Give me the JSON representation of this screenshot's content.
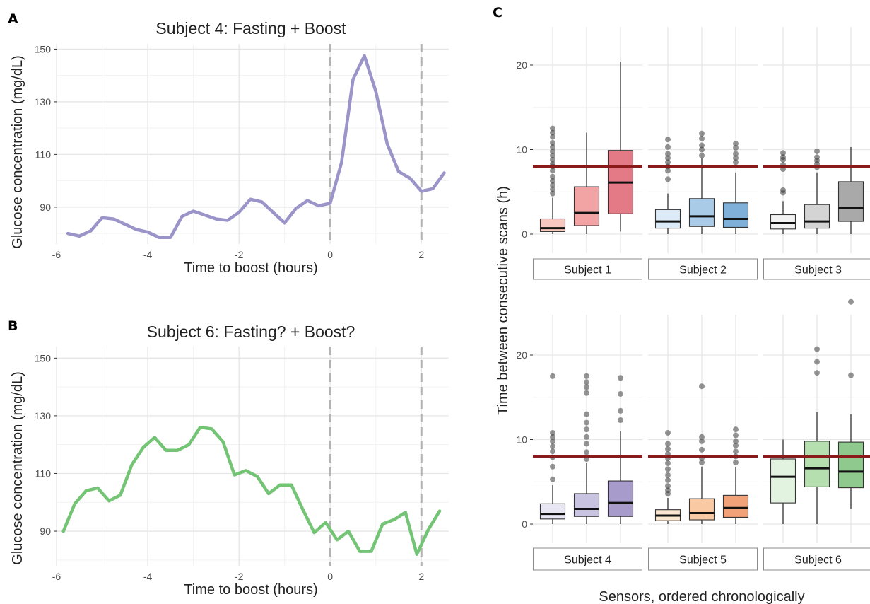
{
  "panels": {
    "a": "A",
    "b": "B",
    "c": "C"
  },
  "chart_data": [
    {
      "type": "line",
      "panel": "A",
      "title": "Subject 4: Fasting + Boost",
      "xlabel": "Time to boost (hours)",
      "ylabel": "Glucose concentration (mg/dL)",
      "xlim": [
        -6,
        2.6
      ],
      "ylim": [
        76,
        152
      ],
      "xticks": [
        -6,
        -4,
        -2,
        0,
        2
      ],
      "yticks": [
        90,
        110,
        130,
        150
      ],
      "vlines": [
        0,
        2
      ],
      "grid": true,
      "color": "#9a94c8",
      "series": [
        {
          "x": [
            -5.75,
            -5.5,
            -5.25,
            -5.0,
            -4.75,
            -4.5,
            -4.25,
            -4.0,
            -3.75,
            -3.5,
            -3.25,
            -3.0,
            -2.75,
            -2.5,
            -2.25,
            -2.0,
            -1.75,
            -1.5,
            -1.25,
            -1.0,
            -0.75,
            -0.5,
            -0.25,
            0.0,
            0.25,
            0.5,
            0.75,
            1.0,
            1.25,
            1.5,
            1.75,
            2.0,
            2.25,
            2.5
          ],
          "y": [
            80,
            79,
            81,
            86,
            85.5,
            83.5,
            81.5,
            80.5,
            78.5,
            78.5,
            86.5,
            88.5,
            87,
            85.5,
            85,
            88,
            93,
            92,
            88,
            84,
            89.5,
            92.5,
            90.5,
            91.5,
            107,
            138.5,
            147.5,
            134,
            114,
            103.5,
            101,
            96,
            97,
            103
          ]
        }
      ]
    },
    {
      "type": "line",
      "panel": "B",
      "title": "Subject 6: Fasting? + Boost?",
      "xlabel": "Time to boost (hours)",
      "ylabel": "Glucose concentration (mg/dL)",
      "xlim": [
        -6,
        2.6
      ],
      "ylim": [
        78,
        154
      ],
      "xticks": [
        -6,
        -4,
        -2,
        0,
        2
      ],
      "yticks": [
        90,
        110,
        130,
        150
      ],
      "vlines": [
        0,
        2
      ],
      "grid": true,
      "color": "#73c474",
      "series": [
        {
          "x": [
            -5.85,
            -5.6,
            -5.35,
            -5.1,
            -4.85,
            -4.6,
            -4.35,
            -4.1,
            -3.85,
            -3.6,
            -3.35,
            -3.1,
            -2.85,
            -2.6,
            -2.35,
            -2.1,
            -1.85,
            -1.6,
            -1.35,
            -1.1,
            -0.85,
            -0.6,
            -0.35,
            -0.1,
            0.15,
            0.4,
            0.65,
            0.9,
            1.15,
            1.4,
            1.65,
            1.9,
            2.15,
            2.4
          ],
          "y": [
            90,
            99.5,
            104,
            105,
            100.5,
            102.5,
            113,
            119,
            122.5,
            118,
            118,
            120,
            126,
            125.5,
            121,
            109.5,
            111,
            109,
            103,
            106,
            106,
            97.5,
            89.5,
            93,
            87,
            90,
            83,
            83,
            92.5,
            94,
            96.5,
            82,
            90.5,
            97
          ]
        }
      ]
    },
    {
      "type": "box",
      "panel": "C",
      "xlabel": "Sensors, ordered chronologically",
      "ylabel": "Time between consecutive scans (h)",
      "yticks": [
        0,
        10,
        20
      ],
      "ylim": [
        -1,
        27
      ],
      "hline": 8,
      "hline_color": "#8b1a1a",
      "grid": true,
      "facets": [
        {
          "label": "Subject 1",
          "boxes": [
            {
              "fill": "#f8c8c0",
              "q1": 0.3,
              "median": 0.7,
              "q3": 1.8,
              "whisker_low": 0,
              "whisker_high": 4.3,
              "outliers": [
                4.8,
                5.3,
                5.8,
                6.3,
                6.8,
                7.5,
                8.0,
                8.3,
                8.8,
                9.3,
                9.8,
                10.3,
                10.8,
                11.5,
                12.0,
                12.5
              ]
            },
            {
              "fill": "#f2a3a3",
              "q1": 1.0,
              "median": 2.5,
              "q3": 5.6,
              "whisker_low": 0,
              "whisker_high": 12.0,
              "outliers": []
            },
            {
              "fill": "#e47a86",
              "q1": 2.4,
              "median": 6.1,
              "q3": 9.9,
              "whisker_low": 0.3,
              "whisker_high": 20.4,
              "outliers": []
            }
          ]
        },
        {
          "label": "Subject 2",
          "boxes": [
            {
              "fill": "#dcebf7",
              "q1": 0.7,
              "median": 1.5,
              "q3": 2.9,
              "whisker_low": 0,
              "whisker_high": 4.8,
              "outliers": [
                6.5,
                7.5,
                8.0,
                8.5,
                9.0,
                9.5,
                10.3,
                11.2
              ]
            },
            {
              "fill": "#a9cbe8",
              "q1": 0.9,
              "median": 2.1,
              "q3": 4.2,
              "whisker_low": 0,
              "whisker_high": 9.0,
              "outliers": [
                9.3,
                10.0,
                10.5,
                11.3,
                11.9
              ]
            },
            {
              "fill": "#7fb0d9",
              "q1": 0.8,
              "median": 1.8,
              "q3": 3.7,
              "whisker_low": 0,
              "whisker_high": 7.3,
              "outliers": [
                8.5,
                9.0,
                9.5,
                10.2,
                10.7
              ]
            }
          ]
        },
        {
          "label": "Subject 3",
          "boxes": [
            {
              "fill": "#f2f2f2",
              "q1": 0.6,
              "median": 1.3,
              "q3": 2.3,
              "whisker_low": 0,
              "whisker_high": 3.9,
              "outliers": [
                4.9,
                5.2,
                7.7,
                8.2,
                8.8,
                9.1,
                9.6
              ]
            },
            {
              "fill": "#d4d4d4",
              "q1": 0.7,
              "median": 1.5,
              "q3": 3.5,
              "whisker_low": 0,
              "whisker_high": 7.3,
              "outliers": [
                7.9,
                8.3,
                8.7,
                9.1,
                9.8
              ]
            },
            {
              "fill": "#a9a9a9",
              "q1": 1.5,
              "median": 3.1,
              "q3": 6.2,
              "whisker_low": 0,
              "whisker_high": 10.3,
              "outliers": []
            }
          ]
        },
        {
          "label": "Subject 4",
          "boxes": [
            {
              "fill": "#e8e6f3",
              "q1": 0.6,
              "median": 1.2,
              "q3": 2.4,
              "whisker_low": 0,
              "whisker_high": 4.6,
              "outliers": [
                5.3,
                6.8,
                7.9,
                8.6,
                9.2,
                9.8,
                10.3,
                10.8,
                17.5
              ]
            },
            {
              "fill": "#c9c3e2",
              "q1": 0.9,
              "median": 1.8,
              "q3": 3.6,
              "whisker_low": 0,
              "whisker_high": 7.2,
              "outliers": [
                7.7,
                8.5,
                9.5,
                10.3,
                11.2,
                12.0,
                13.0,
                15.5,
                16.2,
                16.8,
                17.5
              ]
            },
            {
              "fill": "#a79bcc",
              "q1": 0.9,
              "median": 2.5,
              "q3": 5.1,
              "whisker_low": 0,
              "whisker_high": 11.0,
              "outliers": [
                12.3,
                13.4,
                15.4,
                17.3
              ]
            }
          ]
        },
        {
          "label": "Subject 5",
          "boxes": [
            {
              "fill": "#fbe6cf",
              "q1": 0.4,
              "median": 1.0,
              "q3": 1.7,
              "whisker_low": 0,
              "whisker_high": 3.1,
              "outliers": [
                3.6,
                4.0,
                4.5,
                5.2,
                5.8,
                6.5,
                7.2,
                7.8,
                8.3,
                8.9,
                9.5,
                10.8
              ]
            },
            {
              "fill": "#f9c9a4",
              "q1": 0.5,
              "median": 1.3,
              "q3": 3.0,
              "whisker_low": 0,
              "whisker_high": 6.8,
              "outliers": [
                7.3,
                7.8,
                8.8,
                9.8,
                10.3,
                16.3
              ]
            },
            {
              "fill": "#f2a278",
              "q1": 0.8,
              "median": 1.9,
              "q3": 3.4,
              "whisker_low": 0,
              "whisker_high": 6.7,
              "outliers": [
                7.3,
                8.0,
                8.6,
                9.3,
                9.8,
                10.5,
                11.2
              ]
            }
          ]
        },
        {
          "label": "Subject 6",
          "boxes": [
            {
              "fill": "#e2f3df",
              "q1": 2.5,
              "median": 5.6,
              "q3": 7.7,
              "whisker_low": 0,
              "whisker_high": 10.0,
              "outliers": []
            },
            {
              "fill": "#b6dfb0",
              "q1": 4.4,
              "median": 6.6,
              "q3": 9.8,
              "whisker_low": 0,
              "whisker_high": 13.3,
              "outliers": [
                17.9,
                19.2,
                20.7
              ]
            },
            {
              "fill": "#90c98e",
              "q1": 4.3,
              "median": 6.2,
              "q3": 9.7,
              "whisker_low": 1.8,
              "whisker_high": 13.0,
              "outliers": [
                17.6,
                26.3
              ]
            }
          ]
        }
      ]
    }
  ]
}
